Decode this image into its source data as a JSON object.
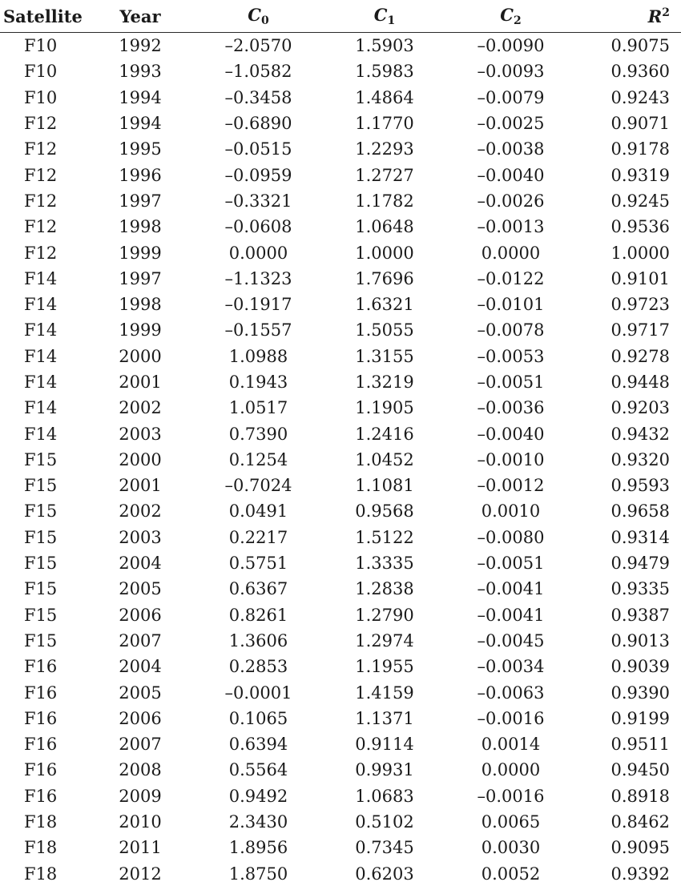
{
  "table": {
    "headers": {
      "satellite": "Satellite",
      "year": "Year",
      "c0": {
        "symbol": "C",
        "sub": "0"
      },
      "c1": {
        "symbol": "C",
        "sub": "1"
      },
      "c2": {
        "symbol": "C",
        "sub": "2"
      },
      "r2": {
        "symbol": "R",
        "sup": "2"
      }
    },
    "rows": [
      [
        "F10",
        "1992",
        "–2.0570",
        "1.5903",
        "–0.0090",
        "0.9075"
      ],
      [
        "F10",
        "1993",
        "–1.0582",
        "1.5983",
        "–0.0093",
        "0.9360"
      ],
      [
        "F10",
        "1994",
        "–0.3458",
        "1.4864",
        "–0.0079",
        "0.9243"
      ],
      [
        "F12",
        "1994",
        "–0.6890",
        "1.1770",
        "–0.0025",
        "0.9071"
      ],
      [
        "F12",
        "1995",
        "–0.0515",
        "1.2293",
        "–0.0038",
        "0.9178"
      ],
      [
        "F12",
        "1996",
        "–0.0959",
        "1.2727",
        "–0.0040",
        "0.9319"
      ],
      [
        "F12",
        "1997",
        "–0.3321",
        "1.1782",
        "–0.0026",
        "0.9245"
      ],
      [
        "F12",
        "1998",
        "–0.0608",
        "1.0648",
        "–0.0013",
        "0.9536"
      ],
      [
        "F12",
        "1999",
        "0.0000",
        "1.0000",
        "0.0000",
        "1.0000"
      ],
      [
        "F14",
        "1997",
        "–1.1323",
        "1.7696",
        "–0.0122",
        "0.9101"
      ],
      [
        "F14",
        "1998",
        "–0.1917",
        "1.6321",
        "–0.0101",
        "0.9723"
      ],
      [
        "F14",
        "1999",
        "–0.1557",
        "1.5055",
        "–0.0078",
        "0.9717"
      ],
      [
        "F14",
        "2000",
        "1.0988",
        "1.3155",
        "–0.0053",
        "0.9278"
      ],
      [
        "F14",
        "2001",
        "0.1943",
        "1.3219",
        "–0.0051",
        "0.9448"
      ],
      [
        "F14",
        "2002",
        "1.0517",
        "1.1905",
        "–0.0036",
        "0.9203"
      ],
      [
        "F14",
        "2003",
        "0.7390",
        "1.2416",
        "–0.0040",
        "0.9432"
      ],
      [
        "F15",
        "2000",
        "0.1254",
        "1.0452",
        "–0.0010",
        "0.9320"
      ],
      [
        "F15",
        "2001",
        "–0.7024",
        "1.1081",
        "–0.0012",
        "0.9593"
      ],
      [
        "F15",
        "2002",
        "0.0491",
        "0.9568",
        "0.0010",
        "0.9658"
      ],
      [
        "F15",
        "2003",
        "0.2217",
        "1.5122",
        "–0.0080",
        "0.9314"
      ],
      [
        "F15",
        "2004",
        "0.5751",
        "1.3335",
        "–0.0051",
        "0.9479"
      ],
      [
        "F15",
        "2005",
        "0.6367",
        "1.2838",
        "–0.0041",
        "0.9335"
      ],
      [
        "F15",
        "2006",
        "0.8261",
        "1.2790",
        "–0.0041",
        "0.9387"
      ],
      [
        "F15",
        "2007",
        "1.3606",
        "1.2974",
        "–0.0045",
        "0.9013"
      ],
      [
        "F16",
        "2004",
        "0.2853",
        "1.1955",
        "–0.0034",
        "0.9039"
      ],
      [
        "F16",
        "2005",
        "–0.0001",
        "1.4159",
        "–0.0063",
        "0.9390"
      ],
      [
        "F16",
        "2006",
        "0.1065",
        "1.1371",
        "–0.0016",
        "0.9199"
      ],
      [
        "F16",
        "2007",
        "0.6394",
        "0.9114",
        "0.0014",
        "0.9511"
      ],
      [
        "F16",
        "2008",
        "0.5564",
        "0.9931",
        "0.0000",
        "0.9450"
      ],
      [
        "F16",
        "2009",
        "0.9492",
        "1.0683",
        "–0.0016",
        "0.8918"
      ],
      [
        "F18",
        "2010",
        "2.3430",
        "0.5102",
        "0.0065",
        "0.8462"
      ],
      [
        "F18",
        "2011",
        "1.8956",
        "0.7345",
        "0.0030",
        "0.9095"
      ],
      [
        "F18",
        "2012",
        "1.8750",
        "0.6203",
        "0.0052",
        "0.9392"
      ]
    ]
  }
}
